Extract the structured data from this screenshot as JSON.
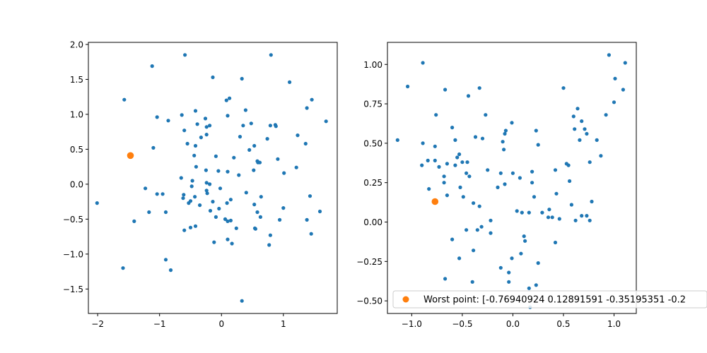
{
  "colors": {
    "points": "#1f77b4",
    "worst": "#ff7f0e",
    "axes": "#000000",
    "background": "#ffffff",
    "legend_border": "#cccccc"
  },
  "chart_data": [
    {
      "type": "scatter",
      "title": "",
      "xlabel": "",
      "ylabel": "",
      "xlim": [
        -2.15,
        1.87
      ],
      "ylim": [
        -1.85,
        2.03
      ],
      "xticks": [
        -2,
        -1,
        0,
        1
      ],
      "xtick_labels": [
        "−2",
        "−1",
        "0",
        "1"
      ],
      "yticks": [
        -1.5,
        -1.0,
        -0.5,
        0.0,
        0.5,
        1.0,
        1.5,
        2.0
      ],
      "ytick_labels": [
        "−1.5",
        "−1.0",
        "−0.5",
        "0.0",
        "0.5",
        "1.0",
        "1.5",
        "2.0"
      ],
      "grid": false,
      "series": [
        {
          "role": "samples",
          "points": [
            [
              -2.01,
              -0.27
            ],
            [
              -1.57,
              1.21
            ],
            [
              -1.59,
              -1.2
            ],
            [
              -1.41,
              -0.53
            ],
            [
              -1.12,
              1.69
            ],
            [
              -1.23,
              -0.06
            ],
            [
              -1.17,
              -0.4
            ],
            [
              -1.1,
              0.52
            ],
            [
              -1.04,
              0.96
            ],
            [
              -1.04,
              -0.14
            ],
            [
              -0.95,
              -0.14
            ],
            [
              -0.9,
              -0.4
            ],
            [
              -0.86,
              0.91
            ],
            [
              -0.9,
              -1.08
            ],
            [
              -0.82,
              -1.23
            ],
            [
              -0.64,
              0.99
            ],
            [
              -0.65,
              0.09
            ],
            [
              -0.61,
              -0.15
            ],
            [
              -0.59,
              1.85
            ],
            [
              -0.6,
              0.77
            ],
            [
              -0.55,
              0.58
            ],
            [
              -0.62,
              -0.2
            ],
            [
              -0.53,
              -0.27
            ],
            [
              -0.48,
              -0.03
            ],
            [
              -0.47,
              0.05
            ],
            [
              -0.5,
              -0.24
            ],
            [
              -0.43,
              -0.18
            ],
            [
              -0.6,
              -0.66
            ],
            [
              -0.5,
              -0.62
            ],
            [
              -0.42,
              -0.6
            ],
            [
              -0.42,
              1.05
            ],
            [
              -0.39,
              0.86
            ],
            [
              -0.42,
              0.55
            ],
            [
              -0.44,
              0.41
            ],
            [
              -0.41,
              0.25
            ],
            [
              -0.33,
              0.67
            ],
            [
              -0.26,
              0.94
            ],
            [
              -0.24,
              0.82
            ],
            [
              -0.24,
              0.71
            ],
            [
              -0.19,
              0.84
            ],
            [
              -0.25,
              0.2
            ],
            [
              -0.24,
              0.02
            ],
            [
              -0.19,
              0.0
            ],
            [
              -0.24,
              -0.09
            ],
            [
              -0.23,
              -0.13
            ],
            [
              -0.35,
              -0.3
            ],
            [
              -0.14,
              -0.25
            ],
            [
              -0.18,
              -0.38
            ],
            [
              -0.14,
              1.53
            ],
            [
              -0.09,
              0.4
            ],
            [
              -0.05,
              0.19
            ],
            [
              -0.09,
              -0.47
            ],
            [
              -0.04,
              -0.35
            ],
            [
              -0.02,
              -0.06
            ],
            [
              -0.12,
              -0.83
            ],
            [
              0.06,
              -0.5
            ],
            [
              0.08,
              1.2
            ],
            [
              0.1,
              0.98
            ],
            [
              0.1,
              0.18
            ],
            [
              0.13,
              1.23
            ],
            [
              0.09,
              -0.27
            ],
            [
              0.1,
              -0.79
            ],
            [
              0.15,
              -0.52
            ],
            [
              0.17,
              -0.85
            ],
            [
              0.24,
              -0.63
            ],
            [
              0.15,
              -0.22
            ],
            [
              0.2,
              0.38
            ],
            [
              0.28,
              0.13
            ],
            [
              0.3,
              0.68
            ],
            [
              0.33,
              1.51
            ],
            [
              0.35,
              0.84
            ],
            [
              0.39,
              1.06
            ],
            [
              0.4,
              -0.12
            ],
            [
              0.45,
              0.49
            ],
            [
              0.48,
              0.87
            ],
            [
              0.52,
              0.2
            ],
            [
              0.53,
              0.55
            ],
            [
              0.53,
              -0.29
            ],
            [
              0.54,
              -0.63
            ],
            [
              0.58,
              0.33
            ],
            [
              0.58,
              -0.4
            ],
            [
              0.59,
              0.31
            ],
            [
              0.62,
              0.31
            ],
            [
              0.63,
              -0.47
            ],
            [
              0.64,
              -0.18
            ],
            [
              0.74,
              0.65
            ],
            [
              0.79,
              0.84
            ],
            [
              0.79,
              -0.73
            ],
            [
              0.8,
              1.85
            ],
            [
              0.87,
              0.85
            ],
            [
              0.88,
              0.83
            ],
            [
              0.91,
              0.36
            ],
            [
              0.94,
              -0.51
            ],
            [
              1.01,
              0.16
            ],
            [
              1.0,
              -0.34
            ],
            [
              1.1,
              1.46
            ],
            [
              1.23,
              0.7
            ],
            [
              1.21,
              0.24
            ],
            [
              1.36,
              0.58
            ],
            [
              1.38,
              1.09
            ],
            [
              1.43,
              -0.17
            ],
            [
              1.46,
              1.21
            ],
            [
              1.59,
              -0.39
            ],
            [
              1.69,
              0.9
            ],
            [
              1.38,
              -0.51
            ],
            [
              1.45,
              -0.71
            ],
            [
              0.33,
              -1.67
            ],
            [
              0.55,
              -0.64
            ],
            [
              0.77,
              -0.87
            ],
            [
              0.1,
              -0.53
            ]
          ]
        },
        {
          "role": "worst",
          "points": [
            [
              -1.47,
              0.41
            ]
          ]
        }
      ]
    },
    {
      "type": "scatter",
      "title": "",
      "xlabel": "",
      "ylabel": "",
      "xlim": [
        -1.24,
        1.22
      ],
      "ylim": [
        -0.58,
        1.14
      ],
      "xticks": [
        -1.0,
        -0.5,
        0.0,
        0.5,
        1.0
      ],
      "xtick_labels": [
        "−1.0",
        "−0.5",
        "0.0",
        "0.5",
        "1.0"
      ],
      "yticks": [
        -0.5,
        -0.25,
        0.0,
        0.25,
        0.5,
        0.75,
        1.0
      ],
      "ytick_labels": [
        "−0.50",
        "−0.25",
        "0.00",
        "0.25",
        "0.50",
        "0.75",
        "1.00"
      ],
      "grid": false,
      "legend": {
        "position": "lower-right",
        "entries": [
          "Worst point: [-0.76940924  0.12891591 -0.35195351 -0.2"
        ]
      },
      "series": [
        {
          "role": "samples",
          "points": [
            [
              -1.14,
              0.52
            ],
            [
              -1.04,
              0.86
            ],
            [
              -0.89,
              1.01
            ],
            [
              -0.89,
              0.5
            ],
            [
              -0.9,
              0.36
            ],
            [
              -0.84,
              0.39
            ],
            [
              -0.83,
              0.21
            ],
            [
              -0.76,
              0.68
            ],
            [
              -0.77,
              0.48
            ],
            [
              -0.77,
              0.39
            ],
            [
              -0.73,
              0.35
            ],
            [
              -0.67,
              0.84
            ],
            [
              -0.68,
              0.29
            ],
            [
              -0.68,
              0.25
            ],
            [
              -0.65,
              0.37
            ],
            [
              -0.65,
              0.17
            ],
            [
              -0.6,
              0.6
            ],
            [
              -0.57,
              0.52
            ],
            [
              -0.55,
              0.41
            ],
            [
              -0.53,
              0.43
            ],
            [
              -0.57,
              0.36
            ],
            [
              -0.52,
              0.22
            ],
            [
              -0.5,
              0.38
            ],
            [
              -0.46,
              0.31
            ],
            [
              -0.44,
              0.8
            ],
            [
              -0.45,
              0.38
            ],
            [
              -0.43,
              0.29
            ],
            [
              -0.49,
              0.16
            ],
            [
              -0.39,
              0.12
            ],
            [
              -0.37,
              0.54
            ],
            [
              -0.33,
              0.85
            ],
            [
              -0.33,
              0.1
            ],
            [
              -0.3,
              0.53
            ],
            [
              -0.27,
              0.68
            ],
            [
              -0.25,
              0.33
            ],
            [
              -0.22,
              0.01
            ],
            [
              -0.15,
              0.22
            ],
            [
              -0.12,
              0.31
            ],
            [
              -0.1,
              0.51
            ],
            [
              -0.09,
              0.46
            ],
            [
              -0.08,
              0.24
            ],
            [
              -0.08,
              0.56
            ],
            [
              -0.07,
              0.58
            ],
            [
              -0.01,
              0.63
            ],
            [
              0.0,
              0.31
            ],
            [
              0.04,
              0.07
            ],
            [
              0.07,
              0.28
            ],
            [
              0.09,
              0.06
            ],
            [
              0.11,
              -0.09
            ],
            [
              0.12,
              -0.12
            ],
            [
              0.16,
              0.06
            ],
            [
              0.19,
              0.32
            ],
            [
              0.19,
              0.25
            ],
            [
              0.21,
              0.16
            ],
            [
              0.23,
              0.58
            ],
            [
              0.25,
              0.49
            ],
            [
              0.29,
              0.06
            ],
            [
              0.35,
              0.03
            ],
            [
              0.36,
              0.08
            ],
            [
              0.39,
              0.03
            ],
            [
              0.42,
              0.33
            ],
            [
              0.43,
              0.18
            ],
            [
              0.46,
              0.02
            ],
            [
              0.5,
              0.85
            ],
            [
              0.53,
              0.37
            ],
            [
              0.55,
              0.36
            ],
            [
              0.56,
              0.26
            ],
            [
              0.58,
              0.11
            ],
            [
              0.6,
              0.67
            ],
            [
              0.61,
              0.59
            ],
            [
              0.62,
              0.01
            ],
            [
              0.64,
              0.72
            ],
            [
              0.66,
              0.52
            ],
            [
              0.68,
              0.64
            ],
            [
              0.71,
              0.59
            ],
            [
              0.73,
              0.56
            ],
            [
              0.76,
              0.38
            ],
            [
              0.78,
              0.13
            ],
            [
              0.83,
              0.52
            ],
            [
              0.87,
              0.42
            ],
            [
              0.92,
              0.68
            ],
            [
              0.95,
              1.06
            ],
            [
              1.0,
              0.76
            ],
            [
              1.01,
              0.91
            ],
            [
              1.09,
              0.84
            ],
            [
              1.11,
              1.01
            ],
            [
              0.68,
              0.04
            ],
            [
              0.73,
              0.04
            ],
            [
              0.76,
              0.01
            ],
            [
              0.42,
              -0.13
            ],
            [
              -0.6,
              -0.11
            ],
            [
              -0.53,
              -0.23
            ],
            [
              -0.4,
              -0.38
            ],
            [
              -0.39,
              -0.18
            ],
            [
              -0.35,
              -0.05
            ],
            [
              -0.31,
              -0.03
            ],
            [
              -0.22,
              -0.07
            ],
            [
              -0.12,
              -0.29
            ],
            [
              -0.04,
              -0.32
            ],
            [
              -0.04,
              -0.38
            ],
            [
              -0.01,
              -0.23
            ],
            [
              0.08,
              -0.2
            ],
            [
              0.16,
              -0.42
            ],
            [
              0.23,
              -0.4
            ],
            [
              0.25,
              -0.26
            ],
            [
              0.17,
              -0.54
            ],
            [
              -0.67,
              -0.36
            ],
            [
              -0.46,
              -0.05
            ]
          ]
        },
        {
          "role": "worst",
          "name": "Worst point: [-0.76940924  0.12891591 -0.35195351 -0.2",
          "points": [
            [
              -0.77,
              0.13
            ]
          ]
        }
      ]
    }
  ]
}
